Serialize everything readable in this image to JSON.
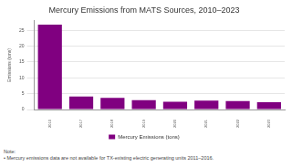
{
  "chart_data": {
    "type": "bar",
    "title": "Mercury Emissions from MATS Sources, 2010–2023",
    "y_label": "Emissions (tons)",
    "categories": [
      "2010",
      "2017",
      "2018",
      "2019",
      "2020",
      "2021",
      "2022",
      "2023"
    ],
    "series": [
      {
        "name": "Mercury Emissions (tons)",
        "color": "#800080",
        "values": [
          26.8,
          4.1,
          3.7,
          3.0,
          2.5,
          2.8,
          2.7,
          2.3
        ]
      }
    ],
    "ylim": [
      0,
      28
    ],
    "yticks": [
      0,
      5,
      10,
      15,
      20,
      25
    ],
    "grid": true,
    "legend": "bottom",
    "notes": [
      "Note:",
      "• Mercury emissions data are not available for TX-existing electric generating units 2011–2016."
    ]
  }
}
